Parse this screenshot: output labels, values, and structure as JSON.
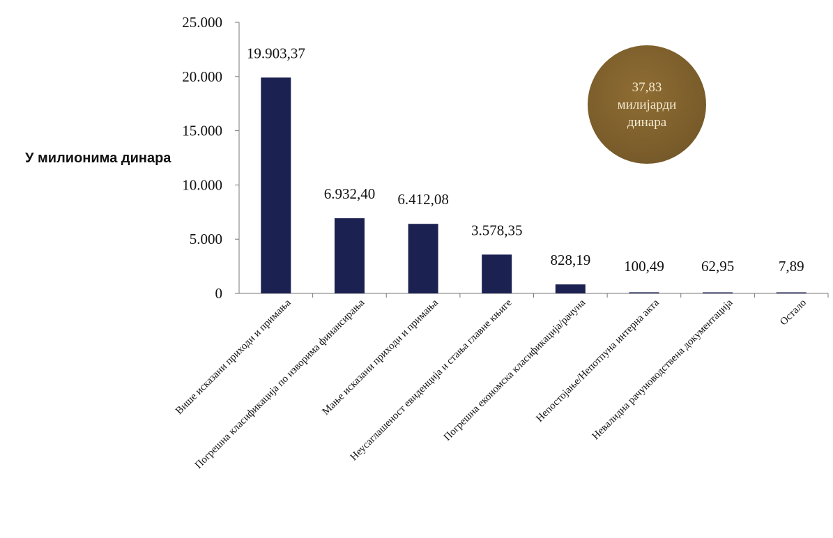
{
  "chart_data": {
    "type": "bar",
    "ylabel": "У милионима динара",
    "ylim": [
      0,
      25000
    ],
    "yticks": [
      0,
      5000,
      10000,
      15000,
      20000,
      25000
    ],
    "ytick_labels": [
      "0",
      "5.000",
      "10.000",
      "15.000",
      "20.000",
      "25.000"
    ],
    "bar_color": "#1b2150",
    "grid": false,
    "categories": [
      "Више исказани приходи и примања",
      "Погрешна класификација по изворима финансирања",
      "Мање исказани приходи и примања",
      "Неусаглашеност евиденција и стања главне књиге",
      "Погрешна економска класификација/рачуна",
      "Непостојање/Непотпуна интерна акта",
      "Невалидна рачуноводствена документација",
      "Остало"
    ],
    "values": [
      19903.37,
      6932.4,
      6412.08,
      3578.35,
      828.19,
      100.49,
      62.95,
      7.89
    ],
    "value_labels": [
      "19.903,37",
      "6.932,40",
      "6.412,08",
      "3.578,35",
      "828,19",
      "100,49",
      "62,95",
      "7,89"
    ]
  },
  "badge": {
    "line1": "37,83",
    "line2": "милијарди",
    "line3": "динара",
    "color": "#7d5f2c"
  }
}
